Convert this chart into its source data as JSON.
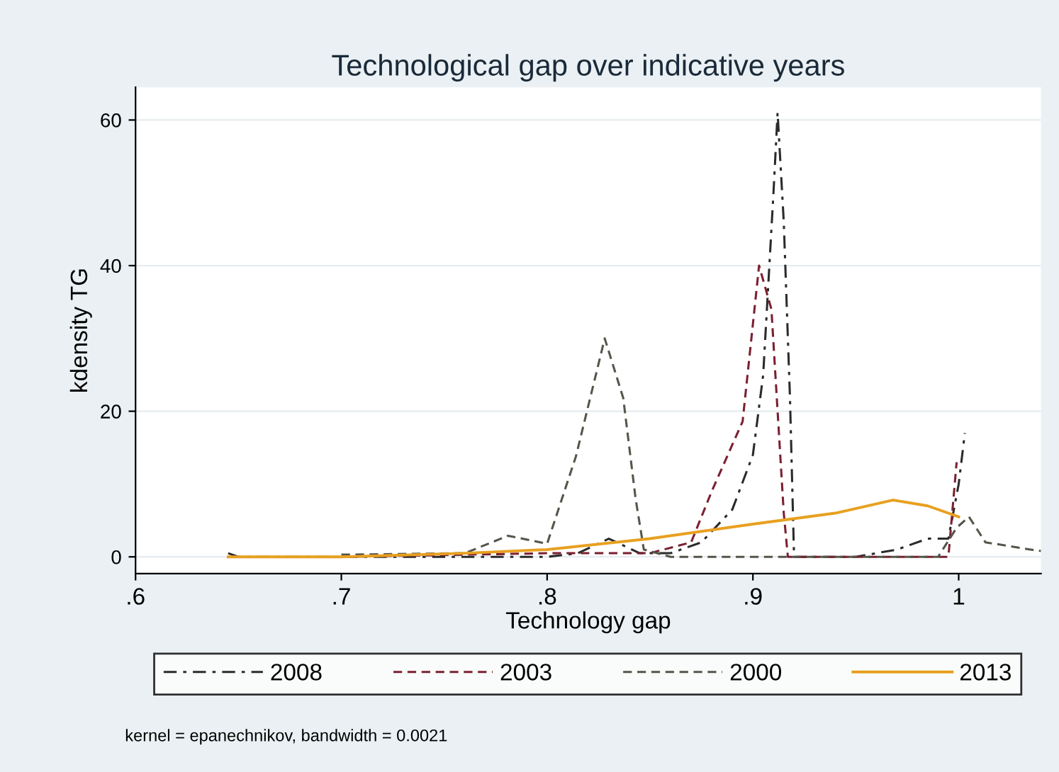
{
  "chart_data": {
    "type": "line",
    "title": "Technological gap over indicative years",
    "xlabel": "Technology gap",
    "ylabel": "kdensity TG",
    "series": [
      {
        "name": "2008",
        "color": "#2b2b2b",
        "line_style": "dashdot",
        "x": [
          0.645,
          0.65,
          0.7,
          0.75,
          0.8,
          0.815,
          0.83,
          0.845,
          0.86,
          0.875,
          0.89,
          0.9,
          0.905,
          0.91,
          0.912,
          0.915,
          0.918,
          0.92,
          0.95,
          0.97,
          0.985,
          0.995,
          1.0,
          1.003
        ],
        "values": [
          0.5,
          0,
          0,
          0,
          0,
          0.5,
          2.5,
          0.5,
          0.5,
          2,
          6.5,
          14,
          25,
          50,
          61,
          46,
          22,
          0,
          0,
          1,
          2.5,
          2.5,
          10,
          17
        ]
      },
      {
        "name": "2003",
        "color": "#7a2030",
        "line_style": "dashed",
        "x": [
          0.7,
          0.76,
          0.8,
          0.85,
          0.87,
          0.88,
          0.895,
          0.903,
          0.909,
          0.915,
          0.917,
          0.95,
          0.995,
          0.999
        ],
        "values": [
          0,
          0.3,
          0.5,
          0.5,
          2,
          9,
          18.6,
          40,
          34,
          6,
          0,
          0,
          0,
          13
        ]
      },
      {
        "name": "2000",
        "color": "#55554a",
        "line_style": "dashed",
        "x": [
          0.7,
          0.76,
          0.781,
          0.8,
          0.814,
          0.828,
          0.837,
          0.843,
          0.847,
          0.86,
          0.9,
          0.99,
          0.999,
          1.005,
          1.013,
          1.035,
          1.04
        ],
        "values": [
          0.3,
          0.5,
          2.9,
          1.8,
          13.8,
          30,
          21.8,
          8,
          1,
          0,
          0,
          0,
          4,
          5.5,
          2,
          1,
          0.8
        ]
      },
      {
        "name": "2013",
        "color": "#e8a020",
        "line_style": "solid",
        "x": [
          0.645,
          0.7,
          0.76,
          0.8,
          0.85,
          0.9,
          0.94,
          0.968,
          0.985,
          1.0
        ],
        "values": [
          0,
          0,
          0.5,
          1,
          2.5,
          4.5,
          6,
          7.8,
          7,
          5.5
        ]
      }
    ],
    "xlim": [
      0.6,
      1.04
    ],
    "ylim": [
      -2.3,
      64.5
    ],
    "xticks": [
      {
        "value": 0.6,
        "label": ".6"
      },
      {
        "value": 0.7,
        "label": ".7"
      },
      {
        "value": 0.8,
        "label": ".8"
      },
      {
        "value": 0.9,
        "label": ".9"
      },
      1
    ],
    "yticks": [
      0,
      20,
      40,
      60
    ],
    "grid": "y",
    "legend": "bottom",
    "annotations": [
      "kernel = epanechnikov, bandwidth = 0.0021"
    ]
  }
}
